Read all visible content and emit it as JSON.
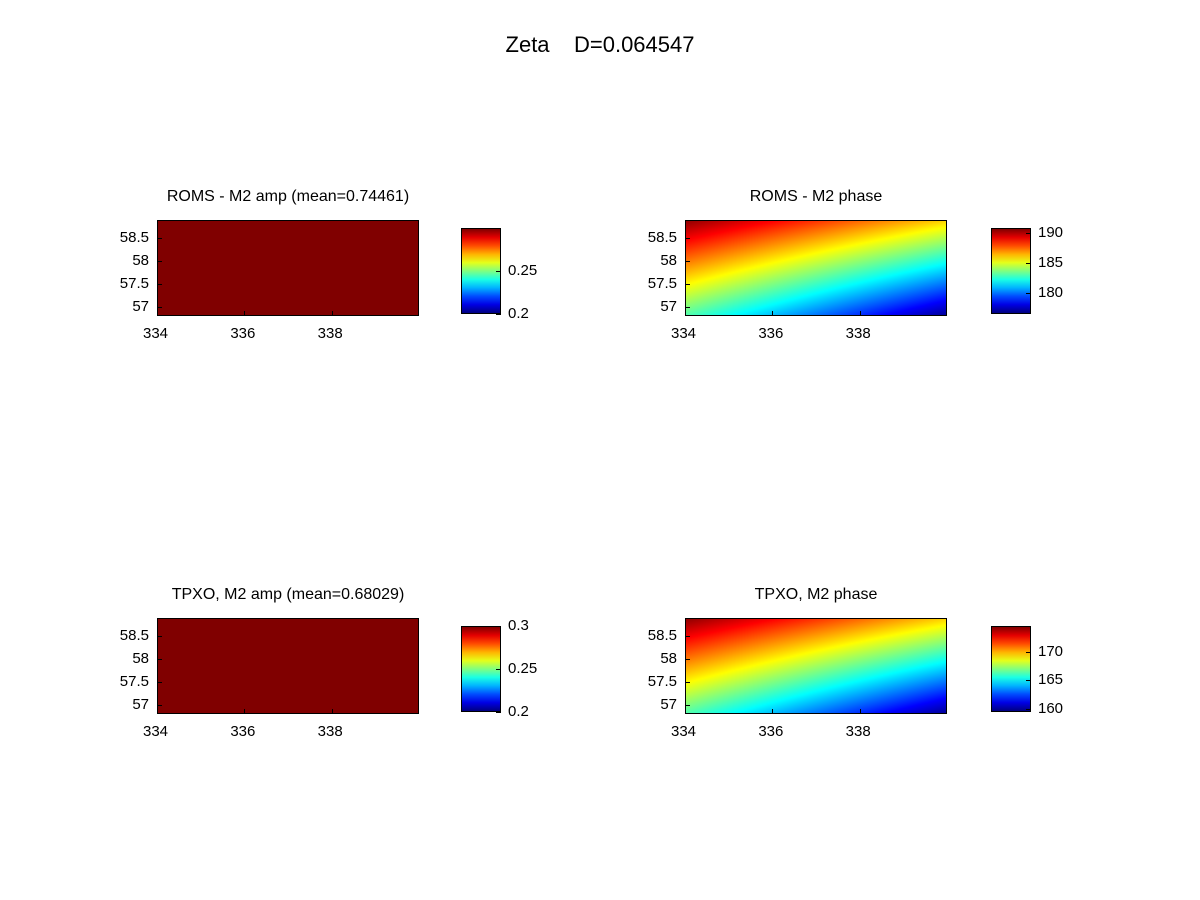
{
  "suptitle": "Zeta    D=0.064547",
  "chart_data": [
    {
      "type": "heatmap",
      "title": "ROMS - M2 amp (mean=0.74461)",
      "x_ticks": [
        334,
        336,
        338
      ],
      "y_ticks": [
        57,
        57.5,
        58,
        58.5
      ],
      "xlim": [
        334,
        340
      ],
      "ylim": [
        56.8,
        58.9
      ],
      "colorbar": {
        "range": [
          0.2,
          0.3
        ],
        "ticks": [
          "0.2",
          "0.25"
        ],
        "tick_values": [
          0.2,
          0.25
        ]
      },
      "field": {
        "kind": "uniform",
        "value": 0.74461,
        "note_color": "#800000"
      }
    },
    {
      "type": "heatmap",
      "title": "ROMS - M2 phase",
      "x_ticks": [
        334,
        336,
        338
      ],
      "y_ticks": [
        57,
        57.5,
        58,
        58.5
      ],
      "xlim": [
        334,
        340
      ],
      "ylim": [
        56.8,
        58.9
      ],
      "colorbar": {
        "range": [
          176.5,
          190.8
        ],
        "ticks": [
          "180",
          "185",
          "190"
        ],
        "tick_values": [
          180,
          185,
          190
        ]
      },
      "field": {
        "kind": "gradient",
        "min": 176.8,
        "max": 190.5
      }
    },
    {
      "type": "heatmap",
      "title": "TPXO, M2 amp (mean=0.68029)",
      "x_ticks": [
        334,
        336,
        338
      ],
      "y_ticks": [
        57,
        57.5,
        58,
        58.5
      ],
      "xlim": [
        334,
        340
      ],
      "ylim": [
        56.8,
        58.9
      ],
      "colorbar": {
        "range": [
          0.2,
          0.3
        ],
        "ticks": [
          "0.2",
          "0.25",
          "0.3"
        ],
        "tick_values": [
          0.2,
          0.25,
          0.3
        ]
      },
      "field": {
        "kind": "uniform",
        "value": 0.68029,
        "note_color": "#800000"
      }
    },
    {
      "type": "heatmap",
      "title": "TPXO, M2 phase",
      "x_ticks": [
        334,
        336,
        338
      ],
      "y_ticks": [
        57,
        57.5,
        58,
        58.5
      ],
      "xlim": [
        334,
        340
      ],
      "ylim": [
        56.8,
        58.9
      ],
      "colorbar": {
        "range": [
          159.5,
          174.5
        ],
        "ticks": [
          "160",
          "165",
          "170"
        ],
        "tick_values": [
          160,
          165,
          170
        ]
      },
      "field": {
        "kind": "gradient",
        "min": 159.8,
        "max": 174.2
      }
    }
  ]
}
